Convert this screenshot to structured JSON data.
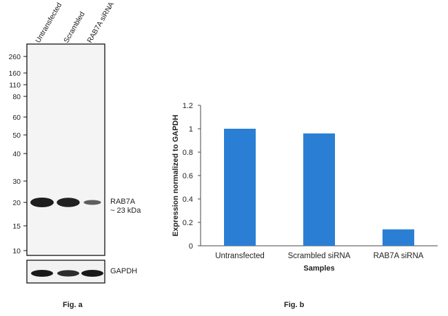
{
  "figure_a": {
    "caption": "Fig. a",
    "lane_labels": [
      "Untransfected",
      "Scrambled",
      "RAB7A siRNA"
    ],
    "ladder_markers": [
      "260",
      "160",
      "110",
      "80",
      "60",
      "50",
      "40",
      "30",
      "20",
      "15",
      "10"
    ],
    "band_label_line1": "RAB7A",
    "band_label_line2": "~ 23 kDa",
    "loading_control_label": "GAPDH",
    "band_intensity": [
      1.0,
      0.96,
      0.42
    ],
    "gapdh_intensity": [
      1.0,
      0.9,
      1.0
    ]
  },
  "figure_b": {
    "caption": "Fig. b"
  },
  "chart_data": {
    "type": "bar",
    "categories": [
      "Untransfected",
      "Scrambled siRNA",
      "RAB7A siRNA"
    ],
    "values": [
      1.0,
      0.96,
      0.14
    ],
    "xlabel": "Samples",
    "ylabel": "Expression normalized to GAPDH",
    "ylim": [
      0,
      1.2
    ],
    "yticks": [
      "0",
      "0.2",
      "0.4",
      "0.6",
      "0.8",
      "1",
      "1.2"
    ],
    "bar_color": "#2a7fd4",
    "grid": false
  }
}
